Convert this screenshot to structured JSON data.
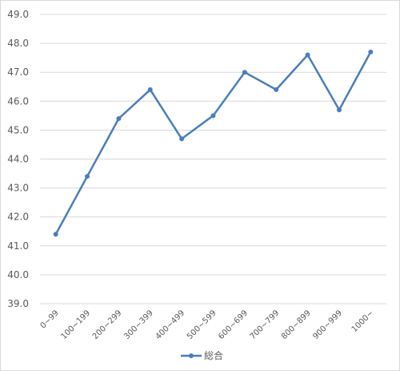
{
  "chart_data": {
    "type": "line",
    "categories": [
      "0~99",
      "100~199",
      "200~299",
      "300~399",
      "400~499",
      "500~599",
      "600~699",
      "700~799",
      "800~899",
      "900~999",
      "1000~"
    ],
    "series": [
      {
        "name": "総合",
        "values": [
          41.4,
          43.4,
          45.4,
          46.4,
          44.7,
          45.5,
          47.0,
          46.4,
          47.6,
          45.7,
          47.7
        ],
        "color": "#4a7ebb"
      }
    ],
    "ylim": [
      39.0,
      49.0
    ],
    "yticks": [
      "39.0",
      "40.0",
      "41.0",
      "42.0",
      "43.0",
      "44.0",
      "45.0",
      "46.0",
      "47.0",
      "48.0",
      "49.0"
    ],
    "grid": true,
    "legend": "bottom",
    "gridline_color": "#d9d9d9"
  }
}
